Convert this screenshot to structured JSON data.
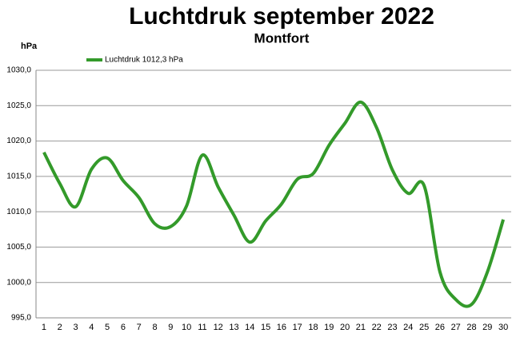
{
  "chart_data": {
    "type": "line",
    "title": "Luchtdruk september 2022",
    "subtitle": "Montfort",
    "y_label": "hPa",
    "categories": [
      "1",
      "2",
      "3",
      "4",
      "5",
      "6",
      "7",
      "8",
      "9",
      "10",
      "11",
      "12",
      "13",
      "14",
      "15",
      "16",
      "17",
      "18",
      "19",
      "20",
      "21",
      "22",
      "23",
      "24",
      "25",
      "26",
      "27",
      "28",
      "29",
      "30"
    ],
    "series": [
      {
        "name": "Luchtdruk 1012,3 hPa",
        "color": "#339a2a",
        "values": [
          1018.4,
          1014.0,
          1010.7,
          1016.0,
          1017.6,
          1014.4,
          1012.0,
          1008.3,
          1007.9,
          1010.8,
          1018.0,
          1013.5,
          1009.5,
          1005.7,
          1008.7,
          1011.1,
          1014.6,
          1015.4,
          1019.4,
          1022.5,
          1025.5,
          1021.9,
          1015.9,
          1012.6,
          1013.7,
          1001.5,
          997.6,
          996.9,
          1001.5,
          1008.9
        ]
      }
    ],
    "ylim": [
      995,
      1030
    ],
    "yticks": [
      {
        "value": 995,
        "label": "995,0"
      },
      {
        "value": 1000,
        "label": "1000,0"
      },
      {
        "value": 1005,
        "label": "1005,0"
      },
      {
        "value": 1010,
        "label": "1010,0"
      },
      {
        "value": 1015,
        "label": "1015,0"
      },
      {
        "value": 1020,
        "label": "1020,0"
      },
      {
        "value": 1025,
        "label": "1025,0"
      },
      {
        "value": 1030,
        "label": "1030,0"
      }
    ],
    "grid": true
  }
}
